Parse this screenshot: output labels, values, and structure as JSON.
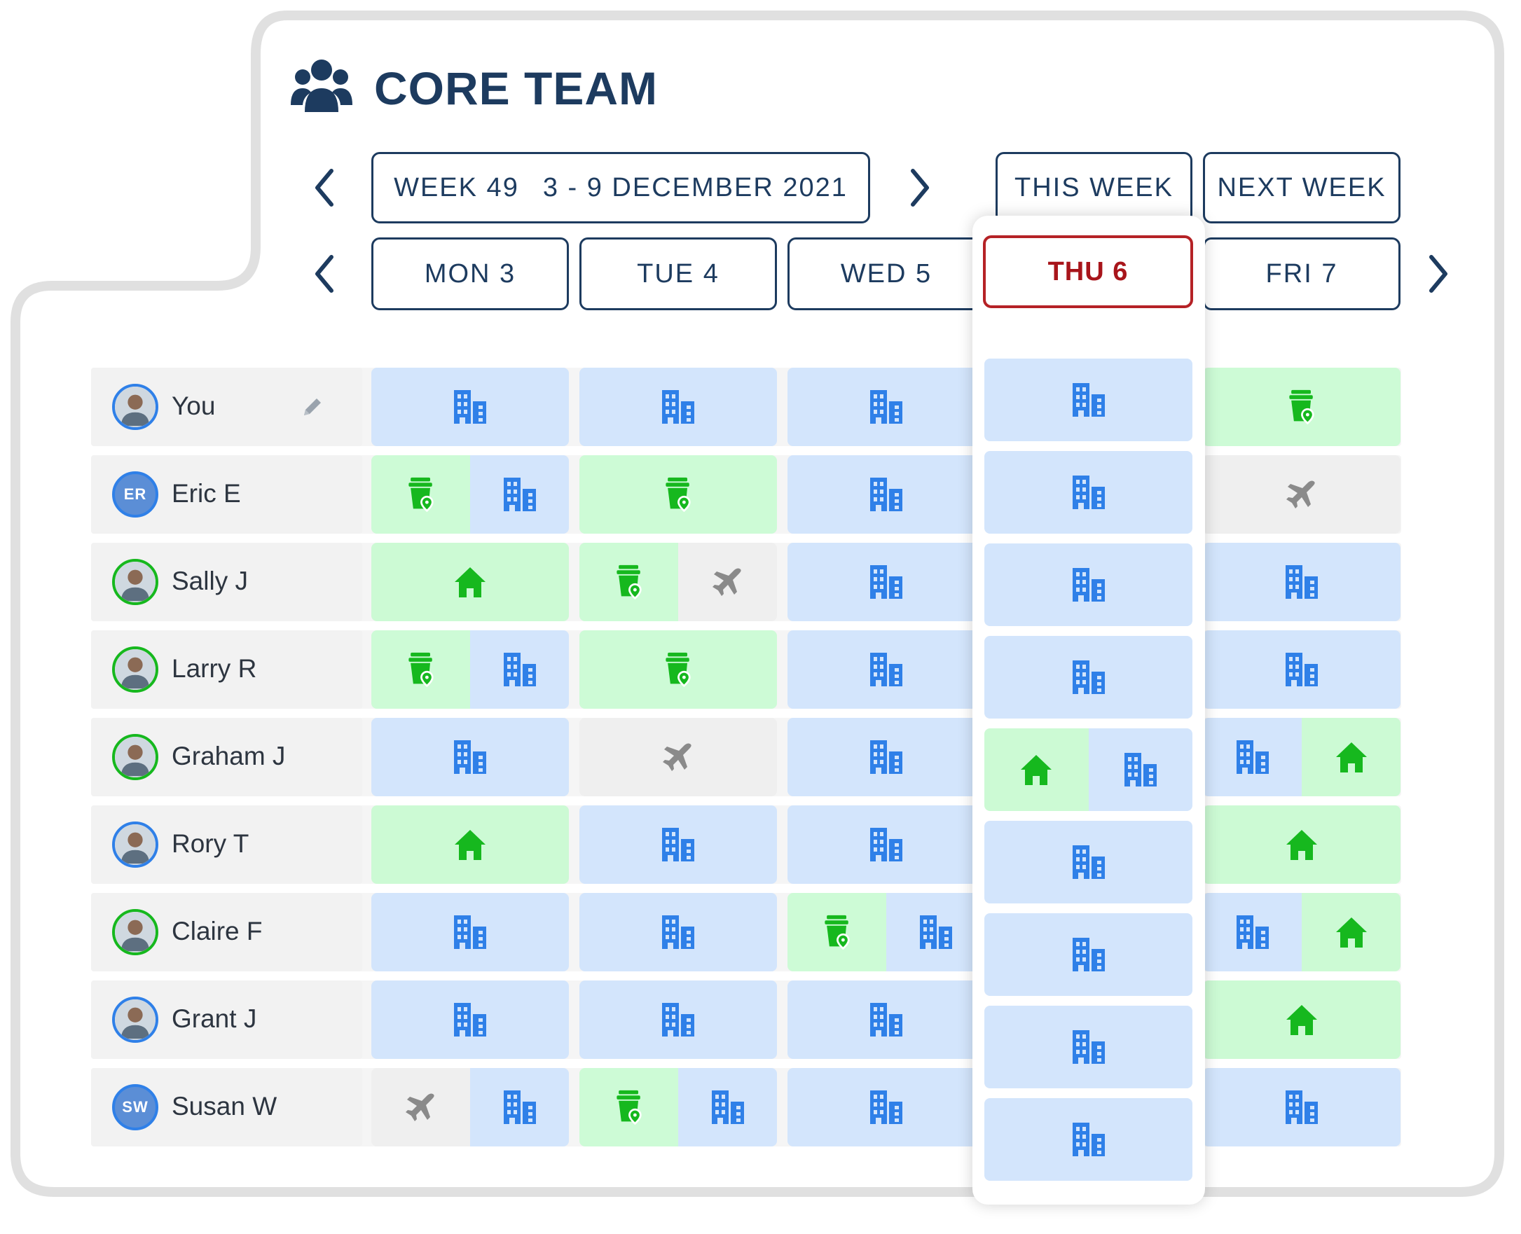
{
  "header": {
    "title": "CORE TEAM",
    "team_icon": "people-group-icon"
  },
  "week_nav": {
    "week_label": "WEEK 49",
    "date_range": "3 - 9 DECEMBER 2021",
    "this_week_label": "THIS WEEK",
    "next_week_label": "NEXT WEEK",
    "prev_icon": "chevron-left-icon",
    "next_icon": "chevron-right-icon"
  },
  "days": [
    {
      "label": "MON 3",
      "selected": false
    },
    {
      "label": "TUE 4",
      "selected": false
    },
    {
      "label": "WED 5",
      "selected": false
    },
    {
      "label": "THU 6",
      "selected": true
    },
    {
      "label": "FRI 7",
      "selected": false
    }
  ],
  "status_legend": {
    "office": "office-building-icon",
    "coffee": "coffee-location-icon",
    "home": "home-icon",
    "travel": "airplane-icon"
  },
  "colors": {
    "navy": "#1d3b5f",
    "selected_red": "#b52226",
    "office_bg": "#d3e5fc",
    "office_icon": "#2f80e8",
    "green_bg": "#cdfbd6",
    "green_icon": "#16b81e",
    "travel_bg": "#efefef",
    "travel_icon": "#8a8a8a"
  },
  "people": [
    {
      "name": "You",
      "avatar": "photo",
      "ring": "blue",
      "editable": true,
      "days": [
        [
          "office"
        ],
        [
          "office"
        ],
        [
          "office"
        ],
        [
          "office"
        ],
        [
          "coffee"
        ]
      ]
    },
    {
      "name": "Eric E",
      "avatar": "initials",
      "initials": "ER",
      "ring": "blue",
      "days": [
        [
          "coffee",
          "office"
        ],
        [
          "coffee"
        ],
        [
          "office"
        ],
        [
          "office"
        ],
        [
          "travel"
        ]
      ]
    },
    {
      "name": "Sally J",
      "avatar": "photo",
      "ring": "green",
      "days": [
        [
          "home"
        ],
        [
          "coffee",
          "travel"
        ],
        [
          "office"
        ],
        [
          "office"
        ],
        [
          "office"
        ]
      ]
    },
    {
      "name": "Larry R",
      "avatar": "photo",
      "ring": "green",
      "days": [
        [
          "coffee",
          "office"
        ],
        [
          "coffee"
        ],
        [
          "office"
        ],
        [
          "office"
        ],
        [
          "office"
        ]
      ]
    },
    {
      "name": "Graham J",
      "avatar": "photo",
      "ring": "green",
      "days": [
        [
          "office"
        ],
        [
          "travel"
        ],
        [
          "office"
        ],
        [
          "home",
          "office"
        ],
        [
          "office",
          "home"
        ]
      ]
    },
    {
      "name": "Rory T",
      "avatar": "photo",
      "ring": "blue",
      "days": [
        [
          "home"
        ],
        [
          "office"
        ],
        [
          "office"
        ],
        [
          "office"
        ],
        [
          "home"
        ]
      ]
    },
    {
      "name": "Claire F",
      "avatar": "photo",
      "ring": "green",
      "days": [
        [
          "office"
        ],
        [
          "office"
        ],
        [
          "coffee",
          "office"
        ],
        [
          "office"
        ],
        [
          "office",
          "home"
        ]
      ]
    },
    {
      "name": "Grant J",
      "avatar": "photo",
      "ring": "blue",
      "days": [
        [
          "office"
        ],
        [
          "office"
        ],
        [
          "office"
        ],
        [
          "office"
        ],
        [
          "home"
        ]
      ]
    },
    {
      "name": "Susan W",
      "avatar": "initials",
      "initials": "SW",
      "ring": "blue",
      "days": [
        [
          "travel",
          "office"
        ],
        [
          "coffee",
          "office"
        ],
        [
          "office"
        ],
        [
          "office"
        ],
        [
          "office"
        ]
      ]
    }
  ]
}
